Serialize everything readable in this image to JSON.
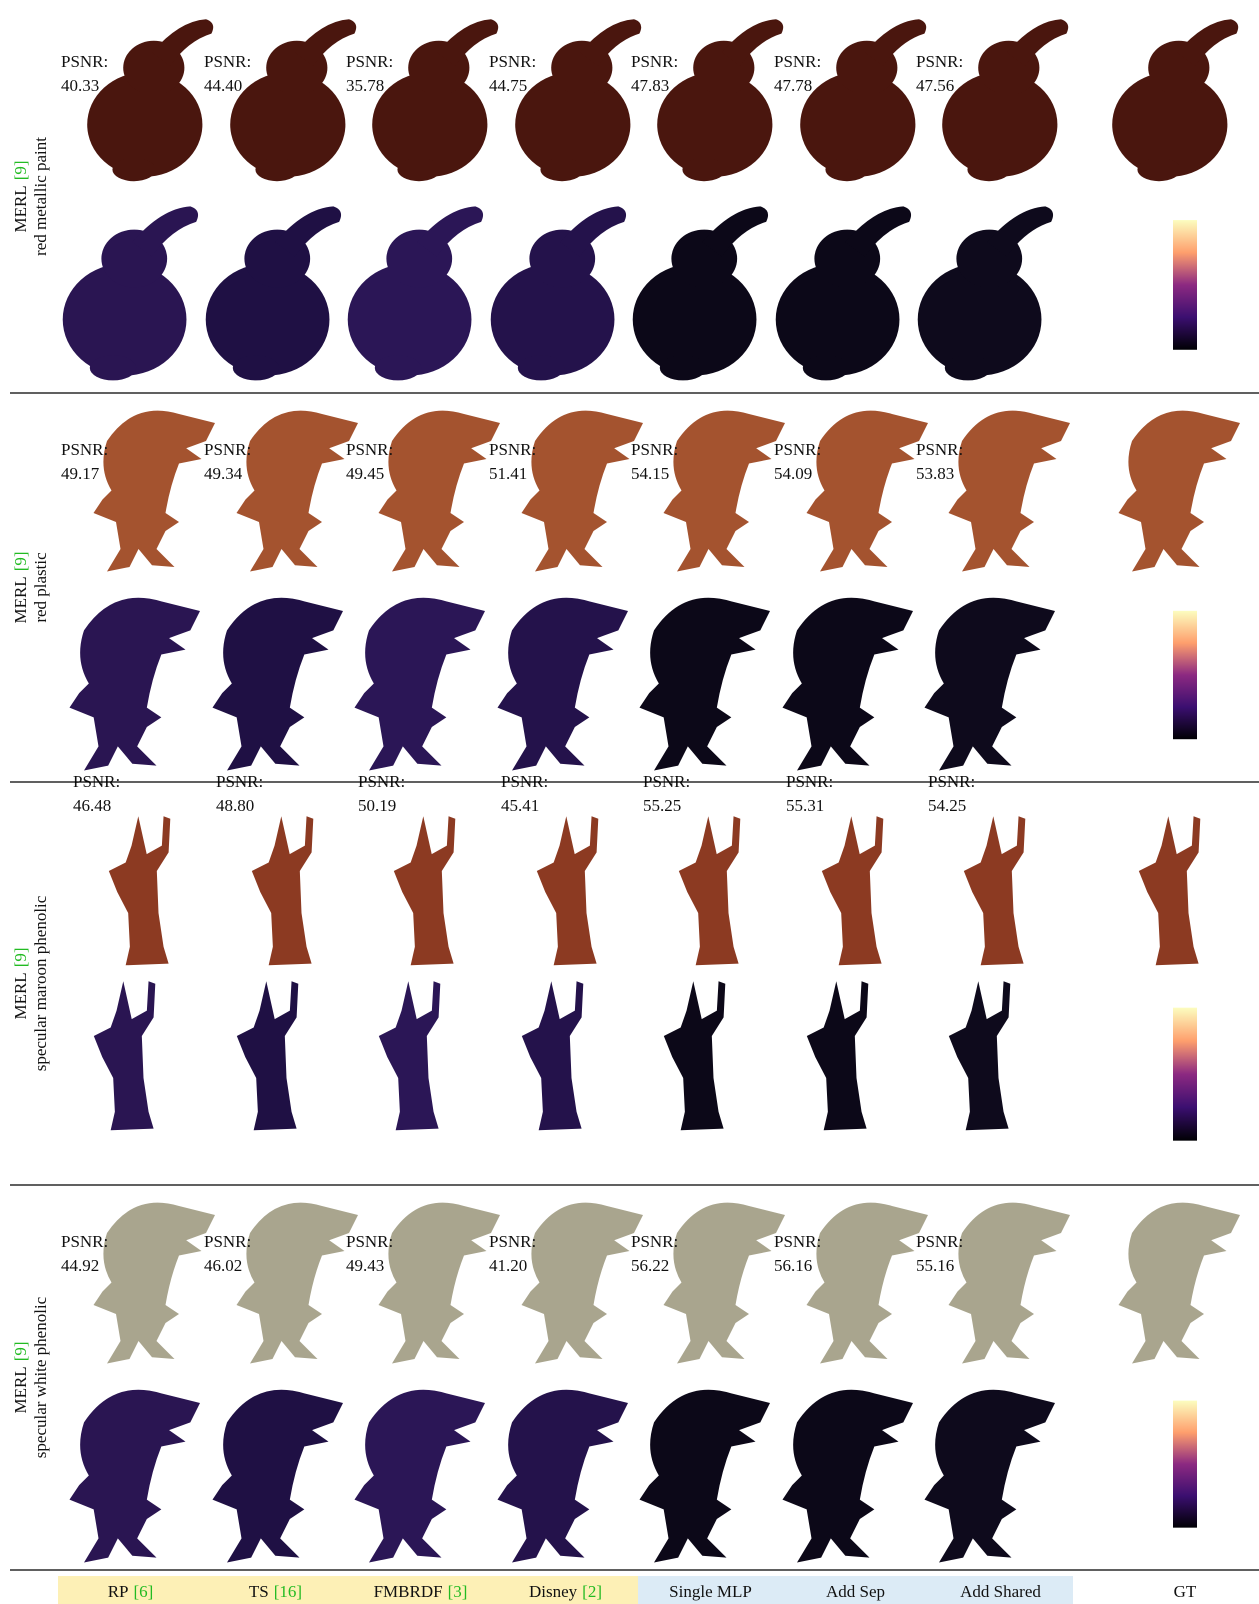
{
  "sections": [
    {
      "dataset": "MERL",
      "ref": "[9]",
      "material": "red metallic paint",
      "psnr_label": "PSNR:",
      "psnr": [
        "40.33",
        "44.40",
        "35.78",
        "44.75",
        "47.83",
        "47.78",
        "47.56"
      ]
    },
    {
      "dataset": "MERL",
      "ref": "[9]",
      "material": "red plastic",
      "psnr_label": "PSNR:",
      "psnr": [
        "49.17",
        "49.34",
        "49.45",
        "51.41",
        "54.15",
        "54.09",
        "53.83"
      ]
    },
    {
      "dataset": "MERL",
      "ref": "[9]",
      "material": "specular maroon phenolic",
      "psnr_label": "PSNR:",
      "psnr": [
        "46.48",
        "48.80",
        "50.19",
        "45.41",
        "55.25",
        "55.31",
        "54.25"
      ]
    },
    {
      "dataset": "MERL",
      "ref": "[9]",
      "material": "specular white phenolic",
      "psnr_label": "PSNR:",
      "psnr": [
        "44.92",
        "46.02",
        "49.43",
        "41.20",
        "56.22",
        "56.16",
        "55.16"
      ]
    }
  ],
  "methods": [
    {
      "name": "RP",
      "ref": "[6]"
    },
    {
      "name": "TS",
      "ref": "[16]"
    },
    {
      "name": "FMBRDF",
      "ref": "[3]"
    },
    {
      "name": "Disney",
      "ref": "[2]"
    },
    {
      "name": "Single MLP"
    },
    {
      "name": "Add Sep"
    },
    {
      "name": "Add Shared"
    }
  ],
  "gt": "GT"
}
